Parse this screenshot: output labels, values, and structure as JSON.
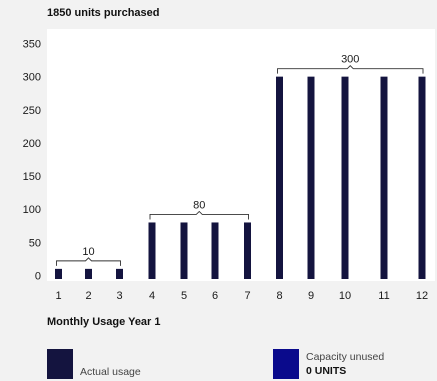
{
  "header": {
    "title": "1850 units purchased"
  },
  "colors": {
    "actual": "#14143f",
    "capacity": "#0a0a8c",
    "plot_bg": "#ffffff",
    "text": "#1a1a1a"
  },
  "chart_data": {
    "type": "bar",
    "title": "Monthly Usage Year 1",
    "categories": [
      "1",
      "2",
      "3",
      "4",
      "5",
      "6",
      "7",
      "8",
      "9",
      "10",
      "11",
      "12"
    ],
    "series": [
      {
        "name": "Actual usage",
        "values": [
          10,
          10,
          10,
          80,
          80,
          80,
          80,
          300,
          300,
          300,
          300,
          300
        ]
      }
    ],
    "ylim": [
      0,
      350
    ],
    "yticks": [
      0,
      50,
      100,
      150,
      200,
      250,
      300,
      350
    ],
    "annotations": [
      {
        "label": "10",
        "from": "1",
        "to": "3",
        "value": 10
      },
      {
        "label": "80",
        "from": "4",
        "to": "7",
        "value": 80
      },
      {
        "label": "300",
        "from": "8",
        "to": "12",
        "value": 300
      }
    ],
    "grid": false,
    "legend_position": "bottom"
  },
  "legend": {
    "actual_label": "Actual usage",
    "capacity_label": "Capacity unused",
    "capacity_value": "0 UNITS"
  }
}
